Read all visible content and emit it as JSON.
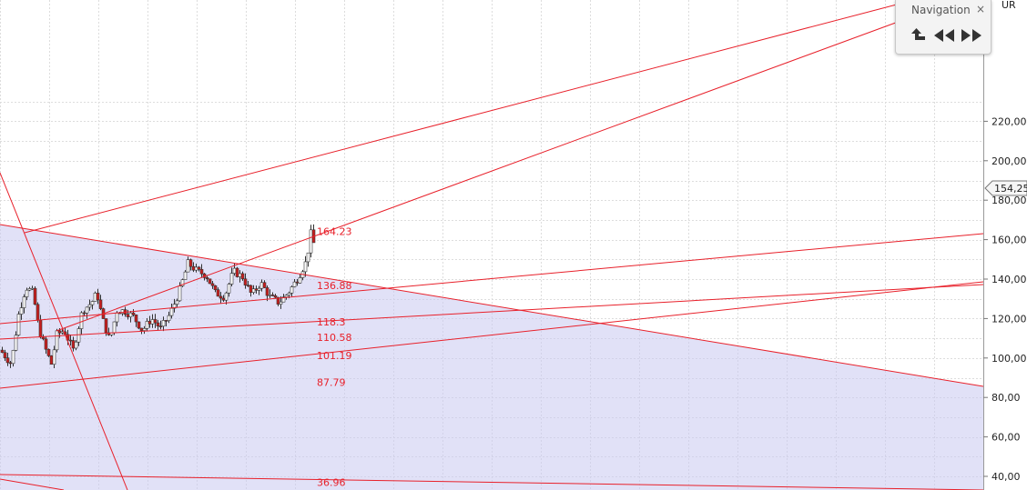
{
  "chart_data": {
    "type": "candlestick",
    "currency_label": "UR",
    "ylim": [
      35,
      232
    ],
    "y_ticks": [
      {
        "value": 40,
        "label": "40,00"
      },
      {
        "value": 60,
        "label": "60,00"
      },
      {
        "value": 80,
        "label": "80,00"
      },
      {
        "value": 100,
        "label": "100,00"
      },
      {
        "value": 120,
        "label": "120,00"
      },
      {
        "value": 140,
        "label": "140,00"
      },
      {
        "value": 160,
        "label": "160,00"
      },
      {
        "value": 180,
        "label": "180,00"
      },
      {
        "value": 200,
        "label": "200,00"
      },
      {
        "value": 220,
        "label": "220,00"
      }
    ],
    "last_price": {
      "value": 154.25,
      "label": "154,25"
    },
    "levels": [
      {
        "value": 164.23,
        "label": "164.23"
      },
      {
        "value": 136.88,
        "label": "136.88"
      },
      {
        "value": 118.3,
        "label": "118.3"
      },
      {
        "value": 110.58,
        "label": "110.58"
      },
      {
        "value": 101.19,
        "label": "101.19"
      },
      {
        "value": 87.79,
        "label": "87.79"
      },
      {
        "value": 36.96,
        "label": "36.96"
      }
    ],
    "grid": true,
    "colors": {
      "line": "#e8202a",
      "fill": "#c8c8f0",
      "candle": "#c81e1e",
      "grid": "#dddddd"
    }
  },
  "navigation": {
    "title": "Navigation",
    "close_glyph": "×"
  }
}
